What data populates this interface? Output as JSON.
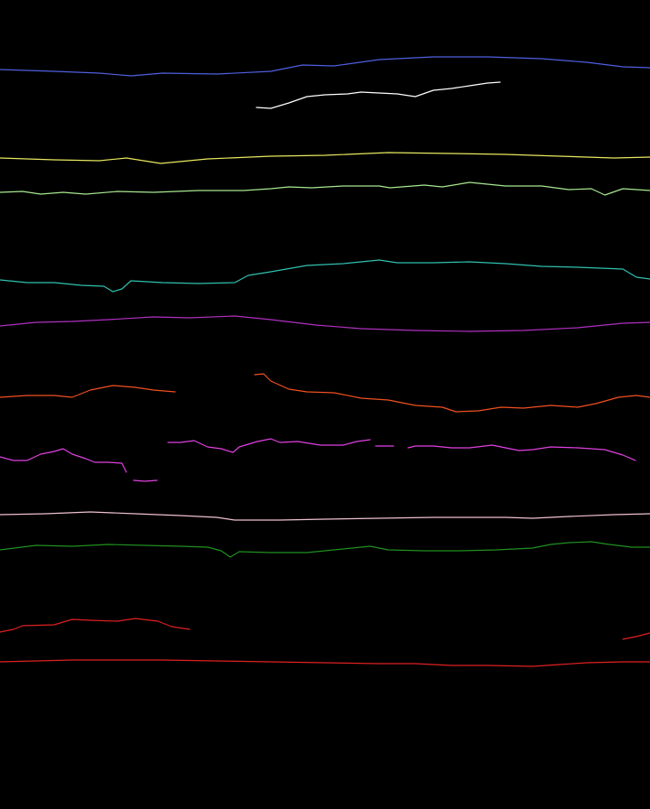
{
  "background": "#000000",
  "lines": [
    {
      "name": "line-blue",
      "color": "#4f5fe0"
    },
    {
      "name": "line-white",
      "color": "#ffffff"
    },
    {
      "name": "line-yellow",
      "color": "#e8e860"
    },
    {
      "name": "line-light-green",
      "color": "#a8e890"
    },
    {
      "name": "line-teal",
      "color": "#30c0b0"
    },
    {
      "name": "line-purple",
      "color": "#b030c0"
    },
    {
      "name": "line-orange",
      "color": "#f05020"
    },
    {
      "name": "line-magenta",
      "color": "#e040e0"
    },
    {
      "name": "line-pink",
      "color": "#f0c0d0"
    },
    {
      "name": "line-green",
      "color": "#209020"
    },
    {
      "name": "line-red-short",
      "color": "#e02020"
    },
    {
      "name": "line-red",
      "color": "#e02020"
    }
  ]
}
